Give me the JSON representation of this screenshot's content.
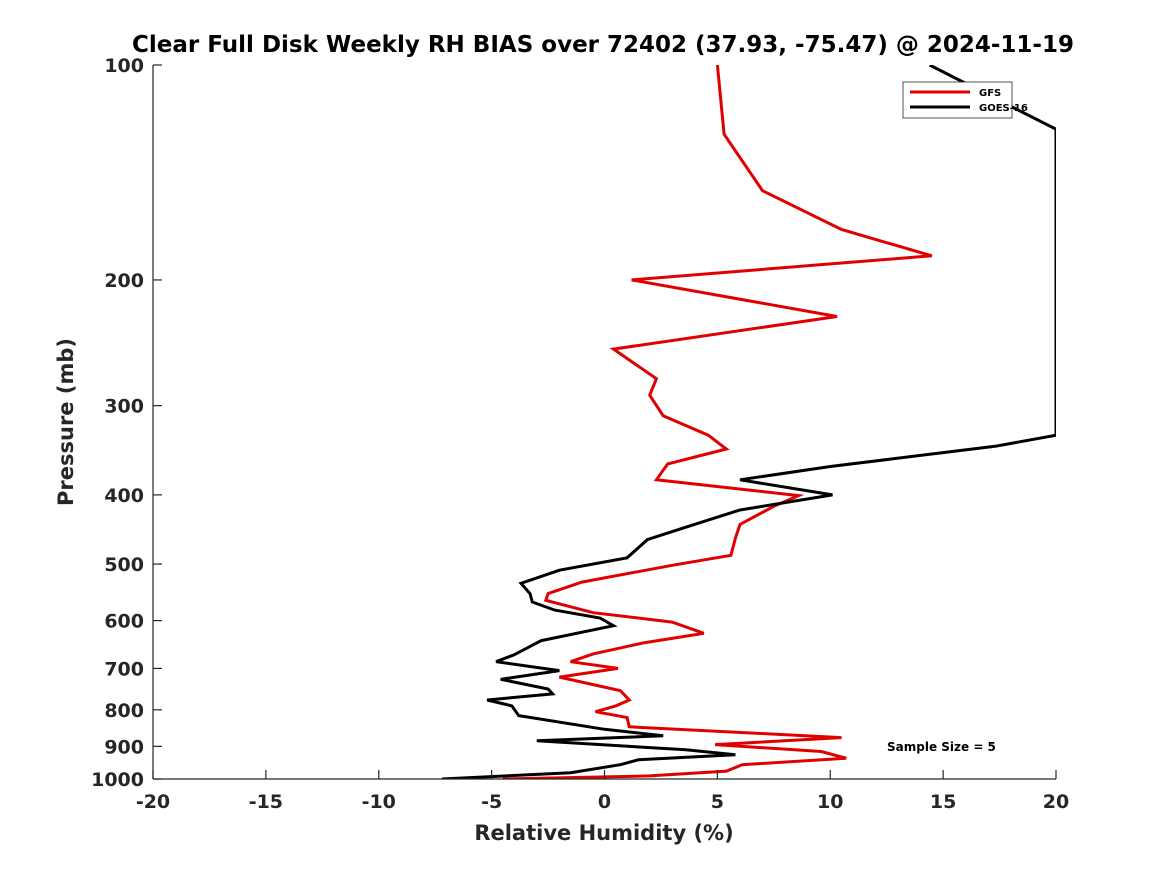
{
  "chart_data": {
    "type": "line",
    "title": "Clear Full Disk Weekly RH BIAS over 72402 (37.93, -75.47) @ 2024-11-19",
    "xlabel": "Relative Humidity (%)",
    "ylabel": "Pressure (mb)",
    "xlim": [
      -20,
      20
    ],
    "ylim": [
      100,
      1000
    ],
    "y_scale": "log",
    "y_reversed": true,
    "x_ticks": [
      -20,
      -15,
      -10,
      -5,
      0,
      5,
      10,
      15,
      20
    ],
    "x_tick_labels": [
      "-20",
      "-15",
      "-10",
      "-5",
      "0",
      "5",
      "10",
      "15",
      "20"
    ],
    "y_ticks": [
      100,
      200,
      300,
      400,
      500,
      600,
      700,
      800,
      900,
      1000
    ],
    "y_tick_labels": [
      "100",
      "200",
      "300",
      "400",
      "500",
      "600",
      "700",
      "800",
      "900",
      "1000"
    ],
    "grid": false,
    "legend_position": "top-right",
    "annotation": "Sample Size = 5",
    "series": [
      {
        "name": "GFS",
        "color": "#e00000",
        "points": [
          [
            5.0,
            100
          ],
          [
            5.3,
            125
          ],
          [
            7.0,
            150
          ],
          [
            10.5,
            170
          ],
          [
            14.5,
            185
          ],
          [
            1.2,
            200
          ],
          [
            10.3,
            225
          ],
          [
            0.4,
            250
          ],
          [
            2.3,
            275
          ],
          [
            2.0,
            290
          ],
          [
            2.6,
            310
          ],
          [
            4.6,
            330
          ],
          [
            5.4,
            345
          ],
          [
            2.8,
            362
          ],
          [
            2.3,
            381
          ],
          [
            8.6,
            401
          ],
          [
            7.5,
            415
          ],
          [
            6.0,
            440
          ],
          [
            5.8,
            460
          ],
          [
            5.6,
            486
          ],
          [
            3.0,
            502
          ],
          [
            -1.0,
            530
          ],
          [
            -2.5,
            550
          ],
          [
            -2.6,
            562
          ],
          [
            -0.5,
            585
          ],
          [
            3.0,
            603
          ],
          [
            4.4,
            625
          ],
          [
            1.7,
            645
          ],
          [
            -0.5,
            668
          ],
          [
            -1.5,
            685
          ],
          [
            0.6,
            700
          ],
          [
            -2.0,
            720
          ],
          [
            0.7,
            752
          ],
          [
            1.1,
            775
          ],
          [
            0.5,
            790
          ],
          [
            -0.4,
            805
          ],
          [
            1.0,
            820
          ],
          [
            1.1,
            845
          ],
          [
            10.5,
            875
          ],
          [
            4.9,
            895
          ],
          [
            9.6,
            915
          ],
          [
            10.7,
            935
          ],
          [
            6.1,
            955
          ],
          [
            5.4,
            975
          ],
          [
            2.0,
            990
          ],
          [
            -4.5,
            1000
          ]
        ]
      },
      {
        "name": "GOES-16",
        "color": "#000000",
        "points": [
          [
            14.4,
            100
          ],
          [
            20.0,
            123
          ],
          [
            20.0,
            330
          ],
          [
            17.3,
            342
          ],
          [
            10.0,
            365
          ],
          [
            6.0,
            381
          ],
          [
            10.1,
            400
          ],
          [
            6.0,
            420
          ],
          [
            3.5,
            445
          ],
          [
            1.9,
            462
          ],
          [
            1.0,
            490
          ],
          [
            -2.0,
            510
          ],
          [
            -3.7,
            532
          ],
          [
            -3.3,
            550
          ],
          [
            -3.2,
            565
          ],
          [
            -2.2,
            580
          ],
          [
            -0.2,
            595
          ],
          [
            0.4,
            610
          ],
          [
            -2.8,
            640
          ],
          [
            -4.0,
            670
          ],
          [
            -4.8,
            685
          ],
          [
            -2.0,
            705
          ],
          [
            -4.6,
            725
          ],
          [
            -2.5,
            748
          ],
          [
            -2.3,
            760
          ],
          [
            -5.2,
            775
          ],
          [
            -4.1,
            790
          ],
          [
            -3.8,
            815
          ],
          [
            0.0,
            852
          ],
          [
            2.6,
            870
          ],
          [
            -3.0,
            884
          ],
          [
            3.6,
            910
          ],
          [
            5.8,
            925
          ],
          [
            1.5,
            940
          ],
          [
            0.7,
            955
          ],
          [
            -1.5,
            980
          ],
          [
            -7.2,
            1000
          ]
        ]
      }
    ]
  }
}
